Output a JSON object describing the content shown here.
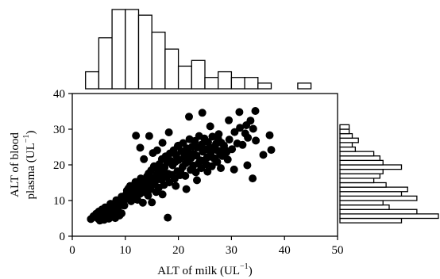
{
  "chart_data": {
    "type": "scatter",
    "xlabel": "ALT of milk (UL",
    "ylabel_line1": "ALT of blood",
    "ylabel_line2": "plasma (UL",
    "unit_superscript": "−1",
    "unit_close": ")",
    "xlim": [
      0,
      50
    ],
    "ylim": [
      0,
      40
    ],
    "x_ticks": [
      "0",
      "10",
      "20",
      "30",
      "40",
      "50"
    ],
    "y_ticks": [
      "0",
      "10",
      "20",
      "30",
      "40"
    ],
    "colors": {
      "marker": "#000000",
      "bar_fill": "#ffffff",
      "bar_stroke": "#000000"
    },
    "series": [
      {
        "points": [
          [
            3.5,
            4.8
          ],
          [
            4.0,
            5.6
          ],
          [
            4.5,
            6.3
          ],
          [
            4.8,
            5.0
          ],
          [
            5.2,
            4.4
          ],
          [
            5.5,
            6.0
          ],
          [
            5.8,
            5.2
          ],
          [
            6.0,
            4.6
          ],
          [
            6.3,
            6.6
          ],
          [
            6.6,
            5.4
          ],
          [
            6.9,
            4.9
          ],
          [
            7.1,
            7.1
          ],
          [
            7.3,
            5.7
          ],
          [
            7.6,
            6.2
          ],
          [
            7.9,
            8.3
          ],
          [
            8.1,
            5.1
          ],
          [
            8.3,
            6.9
          ],
          [
            8.6,
            7.6
          ],
          [
            8.9,
            5.8
          ],
          [
            9.1,
            9.2
          ],
          [
            9.3,
            6.4
          ],
          [
            9.6,
            8.7
          ],
          [
            9.9,
            10.3
          ],
          [
            10.1,
            11.6
          ],
          [
            10.3,
            12.8
          ],
          [
            10.6,
            13.4
          ],
          [
            10.9,
            14.1
          ],
          [
            11.1,
            9.8
          ],
          [
            11.4,
            12.1
          ],
          [
            11.6,
            13.9
          ],
          [
            11.9,
            15.2
          ],
          [
            12.1,
            11.3
          ],
          [
            12.4,
            12.6
          ],
          [
            12.6,
            14.7
          ],
          [
            12.9,
            16.2
          ],
          [
            13.1,
            13.1
          ],
          [
            13.4,
            14.3
          ],
          [
            13.6,
            15.6
          ],
          [
            13.9,
            12.2
          ],
          [
            14.1,
            16.8
          ],
          [
            14.4,
            17.6
          ],
          [
            14.6,
            14.9
          ],
          [
            14.9,
            18.5
          ],
          [
            15.1,
            16.4
          ],
          [
            15.4,
            19.6
          ],
          [
            15.6,
            15.3
          ],
          [
            15.9,
            17.1
          ],
          [
            16.1,
            18.8
          ],
          [
            16.4,
            20.2
          ],
          [
            16.6,
            16.7
          ],
          [
            16.9,
            21.6
          ],
          [
            17.1,
            18.1
          ],
          [
            17.4,
            19.3
          ],
          [
            17.6,
            22.4
          ],
          [
            17.9,
            20.7
          ],
          [
            18.1,
            17.5
          ],
          [
            18.4,
            23.2
          ],
          [
            18.6,
            21.1
          ],
          [
            18.9,
            19.9
          ],
          [
            19.1,
            24.1
          ],
          [
            19.4,
            20.8
          ],
          [
            19.6,
            22.7
          ],
          [
            19.9,
            25.3
          ],
          [
            20.1,
            21.4
          ],
          [
            20.4,
            18.3
          ],
          [
            20.6,
            23.8
          ],
          [
            20.9,
            26.1
          ],
          [
            21.1,
            22.2
          ],
          [
            21.4,
            20.5
          ],
          [
            21.6,
            24.6
          ],
          [
            21.9,
            23.4
          ],
          [
            22.1,
            27.2
          ],
          [
            22.4,
            21.9
          ],
          [
            22.6,
            25.1
          ],
          [
            22.9,
            23.1
          ],
          [
            23.1,
            26.7
          ],
          [
            23.4,
            22.6
          ],
          [
            23.6,
            24.9
          ],
          [
            23.9,
            28.1
          ],
          [
            24.1,
            21.3
          ],
          [
            24.4,
            25.7
          ],
          [
            24.6,
            23.7
          ],
          [
            24.9,
            27.4
          ],
          [
            25.1,
            24.3
          ],
          [
            25.4,
            22.1
          ],
          [
            25.6,
            26.4
          ],
          [
            25.9,
            25.0
          ],
          [
            26.1,
            23.3
          ],
          [
            26.4,
            27.9
          ],
          [
            26.6,
            24.7
          ],
          [
            26.9,
            21.8
          ],
          [
            27.1,
            25.9
          ],
          [
            27.4,
            24.0
          ],
          [
            27.6,
            28.6
          ],
          [
            27.9,
            22.9
          ],
          [
            28.1,
            26.2
          ],
          [
            28.6,
            25.4
          ],
          [
            29.1,
            23.6
          ],
          [
            29.6,
            27.1
          ],
          [
            30.1,
            24.4
          ],
          [
            30.6,
            29.2
          ],
          [
            31.1,
            26.0
          ],
          [
            31.6,
            30.4
          ],
          [
            32.1,
            25.6
          ],
          [
            32.6,
            28.8
          ],
          [
            33.1,
            27.6
          ],
          [
            33.6,
            32.4
          ],
          [
            34.1,
            30.1
          ],
          [
            34.6,
            26.8
          ],
          [
            37.2,
            28.3
          ],
          [
            4.5,
            5.7
          ],
          [
            5.0,
            6.9
          ],
          [
            5.6,
            7.5
          ],
          [
            6.2,
            8.1
          ],
          [
            6.8,
            6.7
          ],
          [
            7.2,
            9.1
          ],
          [
            7.8,
            7.3
          ],
          [
            8.3,
            10.1
          ],
          [
            8.8,
            9.5
          ],
          [
            9.3,
            11.1
          ],
          [
            9.8,
            8.6
          ],
          [
            10.3,
            10.6
          ],
          [
            10.8,
            12.3
          ],
          [
            11.3,
            10.9
          ],
          [
            11.8,
            13.5
          ],
          [
            12.3,
            10.2
          ],
          [
            12.8,
            11.9
          ],
          [
            13.3,
            9.4
          ],
          [
            13.8,
            13.8
          ],
          [
            14.3,
            11.4
          ],
          [
            14.8,
            13.2
          ],
          [
            15.3,
            14.6
          ],
          [
            15.8,
            12.4
          ],
          [
            16.3,
            13.6
          ],
          [
            16.8,
            15.8
          ],
          [
            17.3,
            14.4
          ],
          [
            17.8,
            16.6
          ],
          [
            18.3,
            15.1
          ],
          [
            18.8,
            17.2
          ],
          [
            19.3,
            16.1
          ],
          [
            19.8,
            18.2
          ],
          [
            20.3,
            17.1
          ],
          [
            20.8,
            19.4
          ],
          [
            21.3,
            16.9
          ],
          [
            21.8,
            20.9
          ],
          [
            22.3,
            18.6
          ],
          [
            22.8,
            19.8
          ],
          [
            23.3,
            17.9
          ],
          [
            23.8,
            20.4
          ],
          [
            24.3,
            19.1
          ],
          [
            24.8,
            21.2
          ],
          [
            25.3,
            20.1
          ],
          [
            25.8,
            22.3
          ],
          [
            26.3,
            19.6
          ],
          [
            26.8,
            21.7
          ],
          [
            27.3,
            20.8
          ],
          [
            27.8,
            23.9
          ],
          [
            28.3,
            22.5
          ],
          [
            28.8,
            24.2
          ],
          [
            29.3,
            21.5
          ],
          [
            12.0,
            28.2
          ],
          [
            12.8,
            24.8
          ],
          [
            13.5,
            21.6
          ],
          [
            14.5,
            28.1
          ],
          [
            15.2,
            23.3
          ],
          [
            16.0,
            24.1
          ],
          [
            17.0,
            26.2
          ],
          [
            18.2,
            29.1
          ],
          [
            20.0,
            25.4
          ],
          [
            22.0,
            33.5
          ],
          [
            24.5,
            34.6
          ],
          [
            26.0,
            30.8
          ],
          [
            27.5,
            27.3
          ],
          [
            29.5,
            32.5
          ],
          [
            31.5,
            34.8
          ],
          [
            32.8,
            31.1
          ],
          [
            34.5,
            35.1
          ],
          [
            36.0,
            22.8
          ],
          [
            37.5,
            24.2
          ],
          [
            34.0,
            16.2
          ],
          [
            18.0,
            5.2
          ],
          [
            17.0,
            11.7
          ],
          [
            15.0,
            9.5
          ],
          [
            19.5,
            14.1
          ],
          [
            21.5,
            13.2
          ],
          [
            23.5,
            15.7
          ],
          [
            25.5,
            18.1
          ],
          [
            28.0,
            19.1
          ],
          [
            30.5,
            18.7
          ],
          [
            33.0,
            19.9
          ]
        ]
      }
    ],
    "x_histogram": {
      "bin_width": 2.5,
      "start": 2.5,
      "counts": [
        3,
        9,
        14,
        14,
        13,
        10,
        7,
        4,
        5,
        2,
        3,
        2,
        2,
        1,
        0,
        0,
        1
      ]
    },
    "y_histogram": {
      "bin_width": 1.25,
      "start": 3.75,
      "counts": [
        20,
        32,
        25,
        16,
        14,
        25,
        20,
        22,
        15,
        11,
        13,
        14,
        20,
        14,
        13,
        11,
        5,
        4,
        6,
        4,
        3,
        3
      ]
    }
  }
}
